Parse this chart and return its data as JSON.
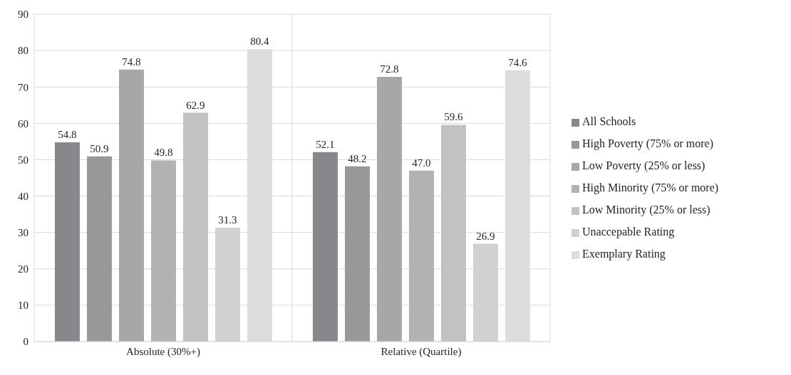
{
  "chart_data": {
    "type": "bar",
    "categories": [
      "Absolute (30%+)",
      "Relative (Quartile)"
    ],
    "series": [
      {
        "name": "All Schools",
        "color": "#87888c",
        "values": [
          54.8,
          52.1
        ],
        "value_labels": [
          "54.8",
          "52.1"
        ]
      },
      {
        "name": "High Poverty (75% or more)",
        "color": "#97989a",
        "values": [
          50.9,
          48.2
        ],
        "value_labels": [
          "50.9",
          "48.2"
        ]
      },
      {
        "name": "Low Poverty (25% or less)",
        "color": "#a5a7a9",
        "values": [
          74.8,
          72.8
        ],
        "value_labels": [
          "74.8",
          "72.8"
        ]
      },
      {
        "name": "High Minority (75% or more)",
        "color": "#b1b2b4",
        "values": [
          49.8,
          47.0
        ],
        "value_labels": [
          "49.8",
          "47.0"
        ]
      },
      {
        "name": "Low Minority (25% or less)",
        "color": "#c1c2c4",
        "values": [
          62.9,
          59.6
        ],
        "value_labels": [
          "62.9",
          "59.6"
        ]
      },
      {
        "name": "Unaccepable Rating",
        "color": "#d0d1d3",
        "values": [
          31.3,
          26.9
        ],
        "value_labels": [
          "31.3",
          "26.9"
        ]
      },
      {
        "name": "Exemplary Rating",
        "color": "#dcdddf",
        "values": [
          80.4,
          74.6
        ],
        "value_labels": [
          "80.4",
          "74.6"
        ]
      }
    ],
    "ylim": [
      0,
      90
    ],
    "yticks": [
      0,
      10,
      20,
      30,
      40,
      50,
      60,
      70,
      80,
      90
    ],
    "grid": true,
    "legend": "right"
  }
}
